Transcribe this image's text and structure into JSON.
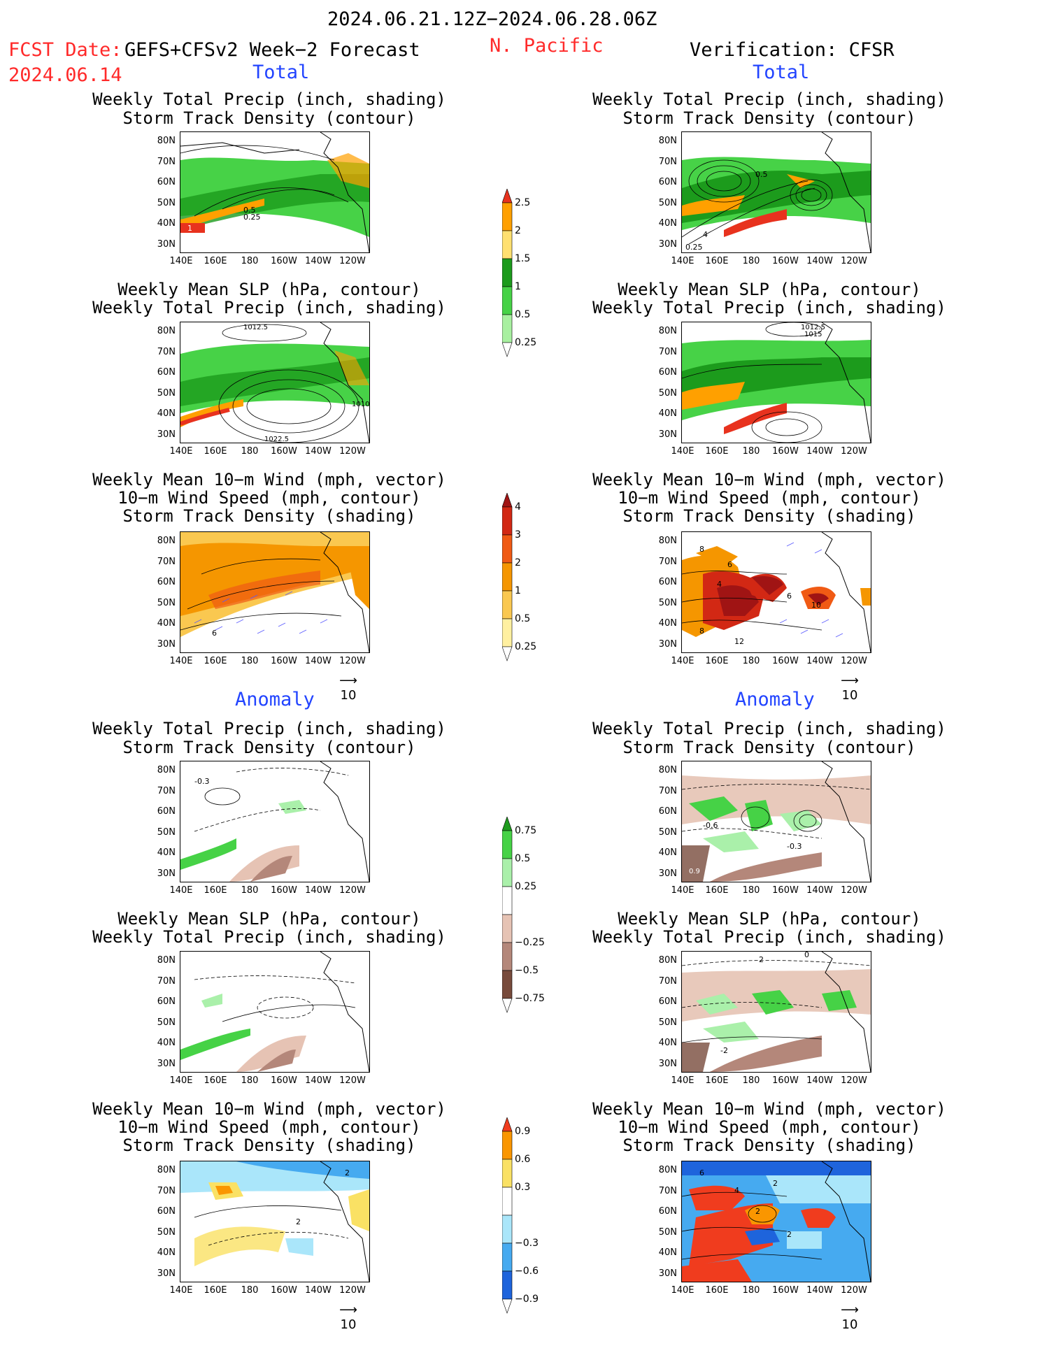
{
  "header": {
    "date_range": "2024.06.21.12Z−2024.06.28.06Z",
    "fcst_date_label": "FCST Date:",
    "model_label": "GEFS+CFSv2 Week−2 Forecast",
    "fcst_date": "2024.06.14",
    "region": "N. Pacific",
    "verification": "Verification: CFSR"
  },
  "sections": {
    "total": "Total",
    "anomaly": "Anomaly"
  },
  "panel_titles": {
    "precip_storm": [
      "Weekly Total Precip (inch, shading)",
      "Storm Track Density (contour)"
    ],
    "slp_precip": [
      "Weekly Mean SLP (hPa, contour)",
      "Weekly Total Precip (inch, shading)"
    ],
    "wind_storm": [
      "Weekly Mean 10−m Wind (mph, vector)",
      "10−m Wind Speed (mph, contour)",
      "Storm Track Density (shading)"
    ]
  },
  "axes": {
    "lat_ticks": [
      "80N",
      "70N",
      "60N",
      "50N",
      "40N",
      "30N"
    ],
    "lon_ticks": [
      "140E",
      "160E",
      "180",
      "160W",
      "140W",
      "120W"
    ]
  },
  "vector_scale": "10",
  "contour_labels": {
    "fc_total_precip": [
      "0.5",
      "0.25",
      "1"
    ],
    "fc_total_slp": [
      "1012.5",
      "1010",
      "1022.5"
    ],
    "fc_total_wind": [
      "6"
    ],
    "vr_total_precip": [
      "0.5",
      "4",
      "0.25"
    ],
    "vr_total_slp": [
      "1012.5",
      "1015"
    ],
    "vr_total_wind": [
      "8",
      "6",
      "4",
      "6",
      "10",
      "8",
      "12"
    ],
    "fc_anom_precip": [
      "-0.3"
    ],
    "vr_anom_precip": [
      "-0.6",
      "-0.3",
      "0.9"
    ],
    "vr_anom_slp": [
      "2",
      "0",
      "-2"
    ],
    "fc_anom_wind": [
      "2",
      "2"
    ],
    "vr_anom_wind": [
      "6",
      "2",
      "4",
      "2",
      "2"
    ]
  },
  "colorbars": {
    "precip_total": {
      "labels": [
        "2.5",
        "2",
        "1.5",
        "1",
        "0.5",
        "0.25"
      ],
      "colors": [
        "#e8321e",
        "#ffa000",
        "#ffe070",
        "#1c9b1c",
        "#47d247",
        "#a8f0a0"
      ]
    },
    "storm_total": {
      "labels": [
        "4",
        "3",
        "2",
        "1",
        "0.5",
        "0.25"
      ],
      "colors": [
        "#a01414",
        "#d22814",
        "#f05a14",
        "#f59600",
        "#fac850",
        "#fff0a0"
      ]
    },
    "precip_anom": {
      "labels": [
        "0.75",
        "0.5",
        "0.25",
        "−0.25",
        "−0.5",
        "−0.75"
      ],
      "colors": [
        "#1e9b1e",
        "#46d246",
        "#aaf0aa",
        "#ffffff",
        "#e6c3b4",
        "#b4877a",
        "#784b3c"
      ]
    },
    "storm_anom": {
      "labels": [
        "0.9",
        "0.6",
        "0.3",
        "−0.3",
        "−0.6",
        "−0.9"
      ],
      "colors": [
        "#f03c1e",
        "#fa9600",
        "#fae164",
        "#ffffff",
        "#aae6fa",
        "#46aaf0",
        "#1e64dc"
      ]
    }
  }
}
